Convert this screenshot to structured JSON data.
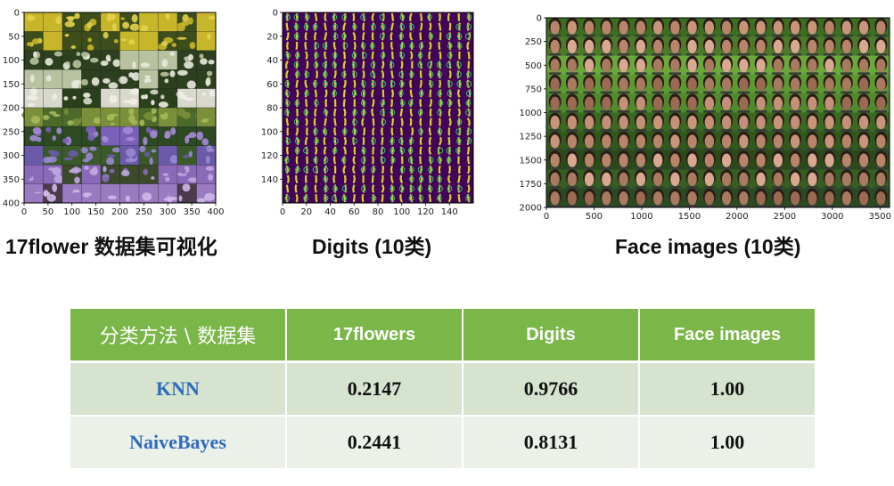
{
  "panels": [
    {
      "caption": "17flower 数据集可视化",
      "x_ticks": [
        "0",
        "50",
        "100",
        "150",
        "200",
        "250",
        "300",
        "350",
        "400"
      ],
      "y_ticks": [
        "0",
        "50",
        "100",
        "150",
        "200",
        "250",
        "300",
        "350",
        "400"
      ],
      "xlim": [
        0,
        400
      ],
      "ylim": [
        0,
        400
      ]
    },
    {
      "caption": "Digits (10类)",
      "x_ticks": [
        "0",
        "20",
        "40",
        "60",
        "80",
        "100",
        "120",
        "140"
      ],
      "y_ticks": [
        "0",
        "20",
        "40",
        "60",
        "80",
        "100",
        "120",
        "140"
      ],
      "xlim": [
        0,
        160
      ],
      "ylim": [
        0,
        160
      ]
    },
    {
      "caption": "Face images (10类)",
      "x_ticks": [
        "0",
        "500",
        "1000",
        "1500",
        "2000",
        "2500",
        "3000",
        "3500"
      ],
      "y_ticks": [
        "0",
        "250",
        "500",
        "750",
        "1000",
        "1250",
        "1500",
        "1750",
        "2000"
      ],
      "xlim": [
        0,
        3600
      ],
      "ylim": [
        0,
        2000
      ]
    }
  ],
  "table": {
    "headers": [
      "分类方法 \\ 数据集",
      "17flowers",
      "Digits",
      "Face images"
    ],
    "rows": [
      {
        "method": "KNN",
        "values": [
          "0.2147",
          "0.9766",
          "1.00"
        ]
      },
      {
        "method": "NaiveBayes",
        "values": [
          "0.2441",
          "0.8131",
          "1.00"
        ]
      }
    ]
  },
  "colors": {
    "header_bg": "#7ab648",
    "row1_bg": "#d5e3cf",
    "row2_bg": "#ebf1e9",
    "method_text": "#2f6bbd",
    "digits_bg": "#44035b",
    "digits_fg": "#d8e219",
    "face_bg": "#2d5a1c"
  }
}
